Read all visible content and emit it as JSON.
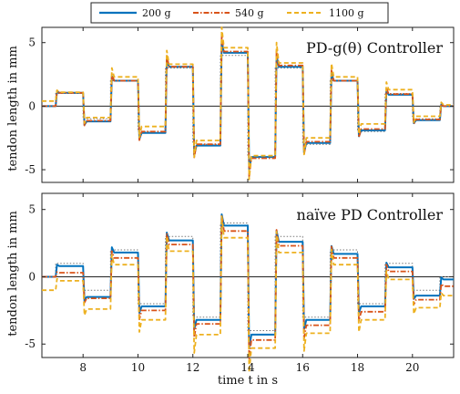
{
  "chart_data": [
    {
      "type": "line",
      "title": "PD-g(θ) Controller",
      "xlabel": "",
      "ylabel": "tendon length in mm",
      "xlim": [
        6.5,
        21.5
      ],
      "ylim": [
        -6,
        6.2
      ],
      "yticks": [
        -5,
        0,
        5
      ],
      "xticks": [
        8,
        10,
        12,
        14,
        16,
        18,
        20
      ],
      "show_xtick_labels": false,
      "grid": false,
      "reference_step_times": [
        6.5,
        7,
        8,
        9,
        10,
        11,
        12,
        13,
        14,
        15,
        16,
        17,
        18,
        19,
        20,
        21,
        21.5
      ],
      "reference": [
        0,
        1,
        -1,
        2,
        -2,
        3,
        -3,
        4,
        -4,
        3,
        -3,
        2,
        -2,
        1,
        -1,
        0
      ],
      "series": [
        {
          "name": "200 g",
          "levels": [
            0,
            1.05,
            -1.2,
            2.0,
            -2.1,
            3.1,
            -3.1,
            4.2,
            -4.0,
            3.1,
            -2.9,
            2.0,
            -1.9,
            0.9,
            -1.1,
            0
          ]
        },
        {
          "name": "540 g",
          "levels": [
            0,
            1.05,
            -1.15,
            2.0,
            -2.0,
            3.1,
            -3.0,
            4.3,
            -4.1,
            3.2,
            -2.8,
            2.0,
            -1.8,
            0.95,
            -1.05,
            0
          ]
        },
        {
          "name": "1100 g",
          "levels": [
            0.4,
            1.1,
            -0.9,
            2.3,
            -1.6,
            3.3,
            -2.7,
            4.6,
            -3.9,
            3.4,
            -2.5,
            2.3,
            -1.4,
            1.3,
            -0.8,
            0.1
          ]
        }
      ]
    },
    {
      "type": "line",
      "title": "naïve PD Controller",
      "xlabel": "time t in s",
      "ylabel": "tendon length in mm",
      "xlim": [
        6.5,
        21.5
      ],
      "ylim": [
        -6,
        6.2
      ],
      "yticks": [
        -5,
        0,
        5
      ],
      "xticks": [
        8,
        10,
        12,
        14,
        16,
        18,
        20
      ],
      "show_xtick_labels": true,
      "grid": false,
      "reference_step_times": [
        6.5,
        7,
        8,
        9,
        10,
        11,
        12,
        13,
        14,
        15,
        16,
        17,
        18,
        19,
        20,
        21,
        21.5
      ],
      "reference": [
        0,
        1,
        -1,
        2,
        -2,
        3,
        -3,
        4,
        -4,
        3,
        -3,
        2,
        -2,
        1,
        -1,
        0
      ],
      "series": [
        {
          "name": "200 g",
          "levels": [
            0,
            0.8,
            -1.5,
            1.8,
            -2.2,
            2.7,
            -3.2,
            3.8,
            -4.3,
            2.6,
            -3.2,
            1.7,
            -2.2,
            0.7,
            -1.4,
            -0.2
          ]
        },
        {
          "name": "540 g",
          "levels": [
            0,
            0.3,
            -1.6,
            1.4,
            -2.5,
            2.4,
            -3.5,
            3.4,
            -4.7,
            2.3,
            -3.6,
            1.4,
            -2.6,
            0.4,
            -1.7,
            -0.7
          ]
        },
        {
          "name": "1100 g",
          "levels": [
            -1.0,
            -0.3,
            -2.4,
            0.9,
            -3.2,
            1.9,
            -4.3,
            2.9,
            -5.3,
            1.8,
            -4.2,
            0.9,
            -3.2,
            -0.2,
            -2.3,
            -1.4
          ]
        }
      ]
    }
  ],
  "legend": {
    "placement": "top-center",
    "entries": [
      {
        "label": "200 g",
        "color": "#0072BD",
        "style": "solid"
      },
      {
        "label": "540 g",
        "color": "#D95319",
        "style": "dashdot"
      },
      {
        "label": "1100 g",
        "color": "#EDB120",
        "style": "dashed"
      }
    ]
  },
  "colors": {
    "reference": "#7a7a7a",
    "zero_line": "#222222"
  }
}
